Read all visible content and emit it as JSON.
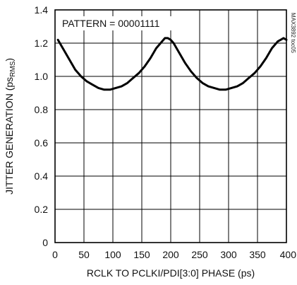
{
  "chart_data": {
    "type": "line",
    "title": "",
    "xlabel": "RCLK TO PCLKI/PDI[3:0] PHASE (ps)",
    "ylabel": {
      "main": "JITTER GENERATION (ps",
      "sub": "RMS",
      "end": ")"
    },
    "annotation": "PATTERN = 00001111",
    "figure_tag": "MAX3892 toc05",
    "xlim": [
      0,
      400
    ],
    "ylim": [
      0,
      1.4
    ],
    "xticks": [
      0,
      50,
      100,
      150,
      200,
      250,
      300,
      350,
      400
    ],
    "xtick_labels": [
      "0",
      "50",
      "100",
      "150",
      "200",
      "250",
      "300",
      "350",
      "400"
    ],
    "yticks": [
      0,
      0.2,
      0.4,
      0.6,
      0.8,
      1.0,
      1.2,
      1.4
    ],
    "ytick_labels": [
      "0",
      "0.2",
      "0.4",
      "0.6",
      "0.8",
      "1.0",
      "1.2",
      "1.4"
    ],
    "grid": true,
    "series": [
      {
        "x": [
          5,
          15,
          25,
          35,
          45,
          55,
          65,
          75,
          85,
          95,
          105,
          115,
          125,
          135,
          145,
          155,
          165,
          175,
          185,
          190,
          195,
          200,
          205,
          215,
          225,
          235,
          245,
          255,
          265,
          275,
          285,
          295,
          305,
          315,
          325,
          335,
          345,
          355,
          365,
          375,
          385,
          390,
          395,
          400
        ],
        "y": [
          1.22,
          1.16,
          1.1,
          1.04,
          1.0,
          0.97,
          0.95,
          0.93,
          0.92,
          0.92,
          0.93,
          0.94,
          0.96,
          0.99,
          1.02,
          1.06,
          1.11,
          1.17,
          1.21,
          1.23,
          1.23,
          1.22,
          1.2,
          1.14,
          1.08,
          1.03,
          0.99,
          0.96,
          0.94,
          0.93,
          0.92,
          0.92,
          0.93,
          0.94,
          0.96,
          0.99,
          1.02,
          1.06,
          1.11,
          1.17,
          1.21,
          1.22,
          1.23,
          1.22
        ]
      }
    ]
  }
}
